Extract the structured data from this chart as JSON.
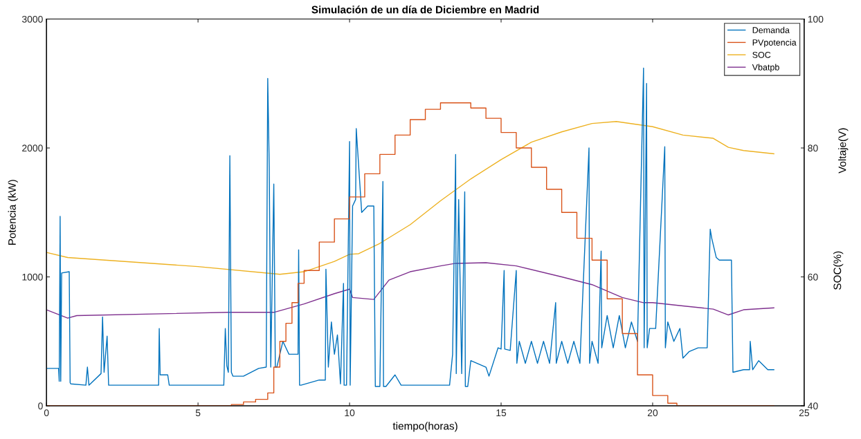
{
  "chart_data": {
    "type": "line",
    "title": "Simulación de un día de Diciembre en Madrid",
    "xlabel": "tiempo(horas)",
    "ylabel": "Potencia (kW)",
    "y2label": "Voltaje(V)",
    "annotations": [
      "SOC(%)"
    ],
    "xlim": [
      0,
      25
    ],
    "xticks": [
      0,
      5,
      10,
      15,
      20,
      25
    ],
    "ylim": [
      0,
      3000
    ],
    "yticks": [
      0,
      1000,
      2000,
      3000
    ],
    "y2lim": [
      40,
      100
    ],
    "y2ticks": [
      40,
      60,
      80,
      100
    ],
    "legend": "top right",
    "grid": false,
    "series": [
      {
        "name": "Demanda",
        "color": "#0072bd",
        "x": [
          0,
          0.4,
          0.42,
          0.45,
          0.47,
          0.5,
          0.75,
          0.78,
          0.8,
          1.3,
          1.35,
          1.4,
          1.8,
          1.85,
          1.9,
          2.0,
          2.05,
          2.1,
          3.7,
          3.72,
          3.75,
          4.0,
          4.05,
          5.85,
          5.9,
          5.95,
          6.0,
          6.05,
          6.1,
          6.15,
          6.5,
          7.0,
          7.25,
          7.3,
          7.35,
          7.4,
          7.5,
          7.55,
          7.6,
          7.8,
          8.0,
          8.3,
          8.32,
          8.35,
          8.4,
          9.0,
          9.2,
          9.22,
          9.3,
          9.4,
          9.5,
          9.6,
          9.7,
          9.8,
          9.82,
          9.9,
          10.0,
          10.02,
          10.1,
          10.2,
          10.22,
          10.4,
          10.6,
          10.8,
          10.85,
          11.0,
          11.1,
          11.12,
          11.2,
          11.5,
          11.7,
          13.3,
          13.4,
          13.5,
          13.52,
          13.6,
          13.7,
          13.8,
          13.82,
          13.9,
          14.0,
          14.5,
          14.6,
          14.9,
          15.0,
          15.1,
          15.12,
          15.3,
          15.5,
          15.52,
          15.6,
          15.8,
          16.0,
          16.2,
          16.4,
          16.6,
          16.8,
          16.82,
          17.0,
          17.2,
          17.4,
          17.6,
          17.9,
          17.92,
          18.0,
          18.2,
          18.3,
          18.32,
          18.5,
          18.7,
          18.9,
          19.1,
          19.3,
          19.5,
          19.7,
          19.72,
          19.8,
          19.82,
          19.9,
          20.1,
          20.4,
          20.42,
          20.5,
          20.7,
          20.9,
          21.0,
          21.2,
          21.5,
          21.8,
          21.9,
          21.95,
          22.1,
          22.2,
          22.6,
          22.65,
          23.0,
          23.2,
          23.22,
          23.3,
          23.5,
          23.8,
          24.0
        ],
        "values": [
          290,
          290,
          190,
          1470,
          190,
          1030,
          1040,
          180,
          170,
          160,
          300,
          160,
          250,
          690,
          260,
          540,
          160,
          160,
          160,
          600,
          240,
          240,
          160,
          160,
          600,
          310,
          260,
          1940,
          260,
          230,
          230,
          290,
          300,
          2540,
          1850,
          300,
          1720,
          300,
          300,
          500,
          400,
          400,
          1210,
          160,
          160,
          200,
          200,
          1060,
          300,
          650,
          400,
          550,
          170,
          950,
          160,
          160,
          2050,
          160,
          1550,
          1600,
          2150,
          1500,
          1550,
          1550,
          150,
          150,
          1740,
          150,
          150,
          240,
          160,
          160,
          400,
          1950,
          250,
          1600,
          250,
          1660,
          150,
          150,
          350,
          300,
          230,
          450,
          440,
          1050,
          440,
          430,
          1050,
          330,
          500,
          330,
          500,
          330,
          500,
          330,
          800,
          330,
          500,
          330,
          500,
          330,
          2000,
          330,
          500,
          330,
          1200,
          450,
          700,
          450,
          700,
          450,
          650,
          500,
          2620,
          450,
          2500,
          450,
          600,
          600,
          2010,
          450,
          650,
          500,
          600,
          370,
          420,
          450,
          450,
          1370,
          1300,
          1150,
          1130,
          1130,
          260,
          280,
          280,
          500,
          280,
          350,
          280,
          280
        ]
      },
      {
        "name": "PVpotencia",
        "type": "step",
        "color": "#d95319",
        "x": [
          0,
          6.0,
          6.1,
          6.5,
          6.9,
          7.3,
          7.5,
          7.7,
          7.9,
          8.1,
          8.3,
          8.5,
          9.0,
          9.5,
          10.0,
          10.5,
          11.0,
          11.5,
          12.0,
          12.5,
          13.0,
          13.5,
          14.0,
          14.5,
          15.0,
          15.5,
          16.0,
          16.5,
          17.0,
          17.5,
          18.0,
          18.5,
          19.0,
          19.5,
          20.0,
          20.5,
          20.8,
          24.0
        ],
        "values": [
          0,
          0,
          10,
          30,
          50,
          100,
          300,
          500,
          640,
          800,
          950,
          1050,
          1270,
          1450,
          1620,
          1800,
          1950,
          2100,
          2220,
          2300,
          2350,
          2350,
          2310,
          2230,
          2120,
          2000,
          1850,
          1680,
          1500,
          1300,
          1130,
          830,
          560,
          240,
          80,
          20,
          0,
          0
        ]
      },
      {
        "name": "SOC",
        "axis": "y2",
        "color": "#edb120",
        "x": [
          0,
          0.7,
          5,
          7.7,
          8.5,
          9.5,
          10.0,
          10.3,
          11,
          12,
          13,
          14,
          15,
          16,
          17,
          18,
          18.8,
          20,
          21,
          22,
          22.5,
          23,
          24
        ],
        "values": [
          63.8,
          63.0,
          61.6,
          60.4,
          60.8,
          62.4,
          63.5,
          63.6,
          65.2,
          68.1,
          71.8,
          75.2,
          78.2,
          80.9,
          82.5,
          83.8,
          84.1,
          83.3,
          82.0,
          81.5,
          80.1,
          79.6,
          79.1
        ]
      },
      {
        "name": "Vbatpb",
        "axis": "y2",
        "color": "#7e2f8e",
        "x": [
          0,
          0.7,
          1,
          6,
          7.5,
          8.5,
          9.5,
          10.0,
          10.1,
          10.8,
          11.3,
          12,
          13,
          13.5,
          14.5,
          15.5,
          17,
          18,
          19,
          19.7,
          20,
          21,
          22,
          22.5,
          23,
          24
        ],
        "values": [
          54.9,
          53.6,
          54.0,
          54.5,
          54.5,
          55.8,
          57.4,
          58.1,
          56.8,
          56.5,
          59.5,
          60.8,
          61.7,
          62.1,
          62.2,
          61.7,
          60.0,
          58.8,
          56.8,
          56.0,
          56.0,
          55.5,
          55.0,
          54.1,
          54.9,
          55.2
        ]
      }
    ]
  }
}
